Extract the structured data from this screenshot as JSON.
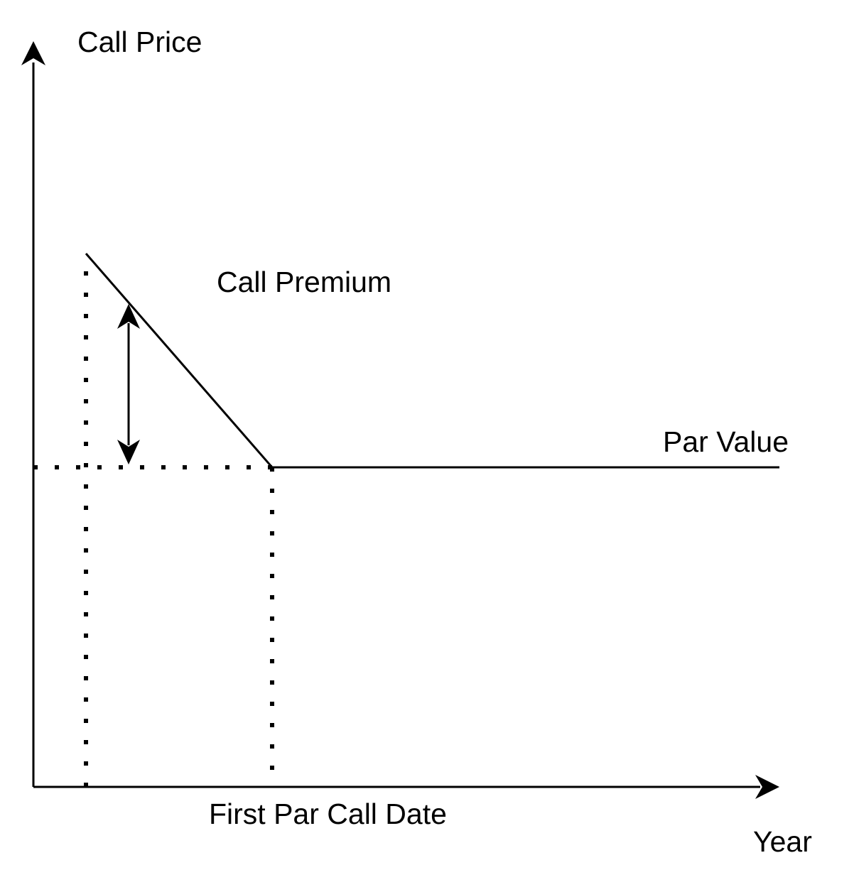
{
  "labels": {
    "y_axis": "Call Price",
    "x_axis": "Year",
    "call_premium": "Call Premium",
    "par_value": "Par Value",
    "first_par_call_date": "First Par Call Date"
  },
  "colors": {
    "line": "#000000",
    "background": "#ffffff"
  }
}
